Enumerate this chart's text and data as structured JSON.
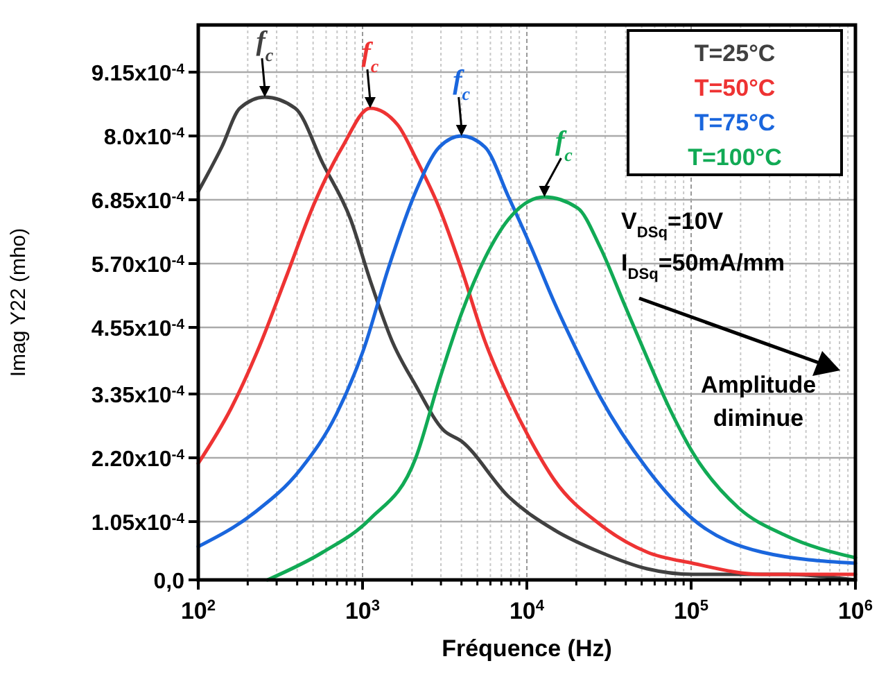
{
  "chart_data": {
    "type": "line",
    "xlabel": "Fréquence (Hz)",
    "ylabel": "Imag Y22 (mho)",
    "log": "x",
    "grid": true,
    "legend": "top right",
    "marker": "none",
    "line_style": "solid",
    "xlim": [
      100,
      1000000
    ],
    "xticks": [
      {
        "value": 100,
        "label": "10$^{2}$"
      },
      {
        "value": 1000,
        "label": "10$^{3}$"
      },
      {
        "value": 10000,
        "label": "10$^{4}$"
      },
      {
        "value": 100000,
        "label": "10$^{5}$"
      },
      {
        "value": 1000000,
        "label": "10$^{6}$"
      }
    ],
    "ylim": [
      0,
      0.001
    ],
    "yticks": [
      {
        "value": 0,
        "label": "0,0"
      },
      {
        "value": 0.000105,
        "label": "1.05x10$^{-4}$"
      },
      {
        "value": 0.00022,
        "label": "2.20x10$^{-4}$"
      },
      {
        "value": 0.000335,
        "label": "3.35x10$^{-4}$"
      },
      {
        "value": 0.000455,
        "label": "4.55x10$^{-4}$"
      },
      {
        "value": 0.00057,
        "label": "5.70x10$^{-4}$"
      },
      {
        "value": 0.000685,
        "label": "6.85x10$^{-4}$"
      },
      {
        "value": 0.0008,
        "label": "8.0x10$^{-4}$"
      },
      {
        "value": 0.000915,
        "label": "9.15x10$^{-4}$"
      }
    ],
    "series": [
      {
        "name": "T=25°C",
        "color": "#404040",
        "x": [
          100,
          139,
          179,
          254,
          389,
          574,
          845,
          1112,
          1514,
          2109,
          3105,
          4000,
          7740,
          14700,
          27900,
          54000,
          102000,
          376000,
          1000000
        ],
        "values": [
          0.0007,
          0.00078,
          0.00085,
          0.00087,
          0.00085,
          0.00075,
          0.00065,
          0.00054,
          0.00043,
          0.00035,
          0.00027,
          0.00025,
          0.00015,
          9e-05,
          5e-05,
          2e-05,
          1e-05,
          1e-05,
          0
        ]
      },
      {
        "name": "T=50°C",
        "color": "#ee3333",
        "x": [
          100,
          159,
          235,
          347,
          511,
          753,
          1112,
          1636,
          2109,
          2933,
          4000,
          5560,
          7740,
          10600,
          14700,
          27900,
          54000,
          102000,
          270000,
          1000000
        ],
        "values": [
          0.00021,
          0.00031,
          0.00042,
          0.00055,
          0.00068,
          0.00078,
          0.00085,
          0.00082,
          0.00076,
          0.00067,
          0.00056,
          0.00043,
          0.00033,
          0.00025,
          0.00018,
          0.0001,
          5e-05,
          3e-05,
          1e-05,
          1e-05
        ]
      },
      {
        "name": "T=75°C",
        "color": "#1a66dd",
        "x": [
          100,
          217,
          421,
          697,
          1028,
          1430,
          2109,
          2933,
          4000,
          5560,
          7740,
          10600,
          14700,
          20400,
          27900,
          54000,
          102000,
          270000,
          1000000
        ],
        "values": [
          6e-05,
          0.00012,
          0.0002,
          0.0003,
          0.00042,
          0.00056,
          0.0007,
          0.00078,
          0.0008,
          0.00078,
          0.00069,
          0.0006,
          0.0005,
          0.00041,
          0.00033,
          0.0002,
          0.00011,
          5e-05,
          3e-05
        ]
      },
      {
        "name": "T=100°C",
        "color": "#11aa55",
        "x": [
          264,
          574,
          1112,
          2109,
          2933,
          4000,
          5560,
          7740,
          12800,
          20400,
          27900,
          38800,
          54000,
          73600,
          102000,
          194000,
          376000,
          1000000
        ],
        "values": [
          0,
          5e-05,
          0.00011,
          0.00022,
          0.00036,
          0.00048,
          0.00058,
          0.00065,
          0.00069,
          0.00067,
          0.0006,
          0.0005,
          0.0004,
          0.00031,
          0.00023,
          0.00013,
          8e-05,
          4e-05
        ]
      }
    ],
    "annotations": [
      {
        "text": "f$_{c}$",
        "x": 254,
        "y": 0.00087
      },
      {
        "text": "f$_{c}$",
        "x": 1112,
        "y": 0.00085
      },
      {
        "text": "f$_{c}$",
        "x": 4000,
        "y": 0.0008
      },
      {
        "text": "f$_{c}$",
        "x": 12800,
        "y": 0.00069
      },
      "V$_{DSq}$=10V",
      "I$_{DSq}$=50mA/mm",
      "Amplitude diminue"
    ]
  }
}
